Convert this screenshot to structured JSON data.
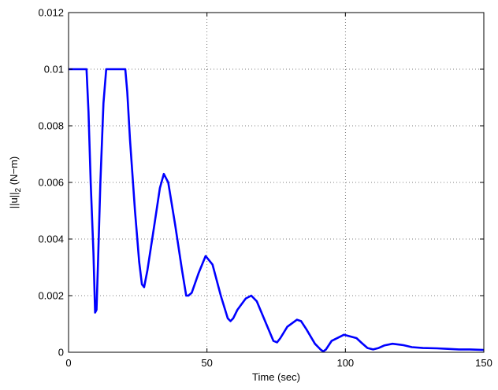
{
  "chart_data": {
    "type": "line",
    "title": "",
    "xlabel": "Time (sec)",
    "ylabel_main": "||u||",
    "ylabel_sub": "2",
    "ylabel_units": " (N−m)",
    "xlim": [
      0,
      150
    ],
    "ylim": [
      0,
      0.012
    ],
    "xticks": [
      0,
      50,
      100,
      150
    ],
    "yticks": [
      0,
      0.002,
      0.004,
      0.006,
      0.008,
      0.01,
      0.012
    ],
    "xtick_labels": [
      "0",
      "50",
      "100",
      "150"
    ],
    "ytick_labels": [
      "0",
      "0.002",
      "0.004",
      "0.006",
      "0.008",
      "0.01",
      "0.012"
    ],
    "grid": true,
    "legend": "none",
    "line_color": "#0000ff",
    "series": [
      {
        "x": [
          0,
          6.5,
          7.2,
          8.0,
          9.0,
          9.6,
          10.1,
          10.6,
          11.5,
          12.6,
          13.6,
          14.2,
          15.0,
          18.5,
          20.5,
          21.2,
          22.2,
          24.0,
          25.5,
          26.5,
          27.3,
          28.5,
          31.0,
          33.0,
          34.4,
          36.0,
          38.5,
          41.0,
          42.5,
          43.3,
          44.5,
          47.0,
          49.5,
          52.0,
          55.0,
          57.5,
          58.5,
          59.5,
          61.0,
          64.0,
          66.0,
          68.0,
          71.0,
          74.0,
          75.3,
          76.5,
          79.0,
          82.5,
          84.0,
          86.0,
          89.0,
          91.0,
          92.0,
          93.0,
          95.0,
          99.5,
          104.0,
          106.0,
          108.0,
          110.0,
          112.0,
          114.0,
          117.0,
          121.0,
          124.0,
          128.0,
          133.0,
          137.0,
          141.0,
          145.0,
          150.0
        ],
        "y": [
          0.01,
          0.01,
          0.0085,
          0.006,
          0.0035,
          0.0014,
          0.0015,
          0.003,
          0.006,
          0.0088,
          0.01,
          0.01,
          0.01,
          0.01,
          0.01,
          0.0092,
          0.0075,
          0.005,
          0.0032,
          0.0024,
          0.0023,
          0.0029,
          0.0045,
          0.0058,
          0.0063,
          0.006,
          0.0045,
          0.0029,
          0.002,
          0.002,
          0.0021,
          0.0028,
          0.0034,
          0.0031,
          0.002,
          0.0012,
          0.0011,
          0.0012,
          0.0015,
          0.0019,
          0.002,
          0.0018,
          0.0011,
          0.0004,
          0.00035,
          0.0005,
          0.0009,
          0.00115,
          0.0011,
          0.0008,
          0.0003,
          0.0001,
          3e-05,
          0.0001,
          0.0004,
          0.00062,
          0.0005,
          0.00032,
          0.00015,
          0.0001,
          0.00015,
          0.00024,
          0.0003,
          0.00025,
          0.00018,
          0.00015,
          0.00014,
          0.00012,
          0.0001,
          0.0001,
          8e-05
        ]
      }
    ]
  }
}
